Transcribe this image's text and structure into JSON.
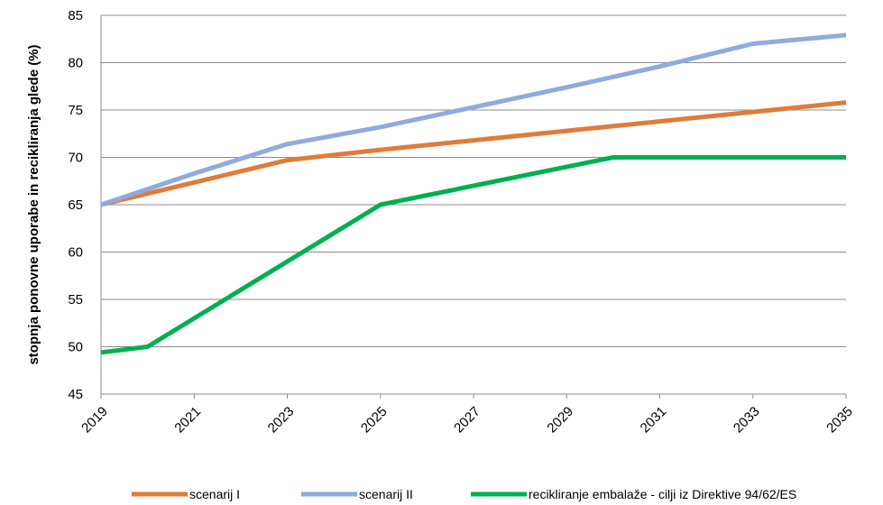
{
  "chart_data": {
    "type": "line",
    "title": "",
    "xlabel": "",
    "ylabel": "stopnja  ponovne uporabe in recikliranja glede (%)",
    "ylim": [
      45,
      85
    ],
    "yticks": [
      45,
      50,
      55,
      60,
      65,
      70,
      75,
      80,
      85
    ],
    "xlim": [
      2019,
      2035
    ],
    "xticks": [
      "2019",
      "2021",
      "2023",
      "2025",
      "2027",
      "2029",
      "2031",
      "2033",
      "2035"
    ],
    "grid": "horizontal",
    "legend_position": "bottom",
    "series": [
      {
        "name": "scenarij I",
        "color": "#E07B39",
        "points": [
          [
            2019,
            65
          ],
          [
            2023,
            69.7
          ],
          [
            2025,
            70.8
          ],
          [
            2027,
            71.8
          ],
          [
            2029,
            72.8
          ],
          [
            2031,
            73.8
          ],
          [
            2033,
            74.8
          ],
          [
            2035,
            75.8
          ]
        ]
      },
      {
        "name": "scenarij II",
        "color": "#8FAADC",
        "points": [
          [
            2019,
            65
          ],
          [
            2021,
            68.3
          ],
          [
            2023,
            71.4
          ],
          [
            2025,
            73.2
          ],
          [
            2027,
            75.3
          ],
          [
            2029,
            77.4
          ],
          [
            2031,
            79.6
          ],
          [
            2033,
            82
          ],
          [
            2035,
            82.9
          ]
        ]
      },
      {
        "name": "recikliranje embalaže - cilji iz Direktive 94/62/ES",
        "color": "#00B050",
        "points": [
          [
            2019,
            49.4
          ],
          [
            2020,
            50
          ],
          [
            2025,
            65
          ],
          [
            2030,
            70
          ],
          [
            2035,
            70
          ]
        ]
      }
    ]
  }
}
